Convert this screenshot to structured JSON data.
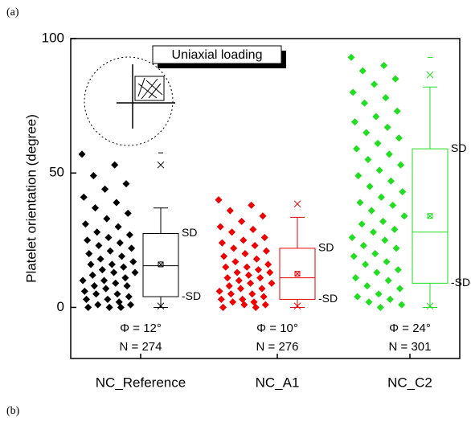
{
  "chart_data": {
    "type": "box_scatter",
    "panel_label": "(a)",
    "next_panel_label": "(b)",
    "y_label": "Platelet orientation (degree)",
    "inset_label": "Uniaxial loading",
    "ylim": [
      -19,
      100
    ],
    "yticks": [
      0,
      50,
      100
    ],
    "categories": [
      "NC_Reference",
      "NC_A1",
      "NC_C2"
    ],
    "series": [
      {
        "name": "NC_Reference",
        "color": "#000000",
        "values": [
          57,
          53,
          49,
          46,
          44,
          41,
          39,
          37,
          35,
          33,
          31,
          30,
          28,
          27,
          26,
          25,
          24,
          23,
          22,
          21,
          20,
          19,
          18,
          17,
          16,
          16,
          15,
          14,
          13,
          13,
          12,
          11,
          10,
          10,
          9,
          8,
          8,
          7,
          6,
          5,
          5,
          4,
          3,
          3,
          2,
          1,
          1,
          0,
          0,
          0
        ],
        "box": {
          "q1": 4,
          "median": 15.5,
          "q3": 27.5,
          "mean": 16,
          "whisker_low": 0,
          "whisker_high": 37,
          "min": 0.5,
          "max": 53,
          "p1": 0,
          "p99": 57.5
        },
        "sd_high_label": "SD",
        "sd_low_label": "-SD",
        "phi_label": "Φ = 12°",
        "n_label": "N = 274"
      },
      {
        "name": "NC_A1",
        "color": "#ee0000",
        "values": [
          40,
          38,
          36,
          34,
          32,
          30,
          29,
          28,
          26,
          25,
          24,
          23,
          22,
          21,
          20,
          19,
          18,
          17,
          16,
          15,
          15,
          14,
          13,
          13,
          12,
          11,
          11,
          10,
          9,
          9,
          8,
          7,
          7,
          6,
          5,
          5,
          4,
          3,
          3,
          2,
          2,
          1,
          1,
          0,
          0
        ],
        "box": {
          "q1": 3,
          "median": 11,
          "q3": 22,
          "mean": 12.5,
          "whisker_low": 0,
          "whisker_high": 33.5,
          "min": 0.5,
          "max": 38.5,
          "p1": 0,
          "p99": null
        },
        "sd_high_label": "SD",
        "sd_low_label": "-SD",
        "phi_label": "Φ = 10°",
        "n_label": "N = 276"
      },
      {
        "name": "NC_C2",
        "color": "#22dd22",
        "values": [
          93,
          90,
          88,
          85,
          83,
          80,
          78,
          76,
          73,
          71,
          69,
          67,
          65,
          63,
          61,
          59,
          57,
          55,
          53,
          51,
          49,
          47,
          45,
          43,
          41,
          39,
          38,
          36,
          34,
          32,
          31,
          29,
          28,
          26,
          25,
          23,
          22,
          20,
          19,
          17,
          16,
          14,
          13,
          11,
          10,
          8,
          7,
          5,
          4,
          3,
          2,
          1,
          0
        ],
        "box": {
          "q1": 9,
          "median": 28,
          "q3": 59,
          "mean": 34,
          "whisker_low": 0,
          "whisker_high": 82,
          "min": 0.5,
          "max": 86.5,
          "p1": 0,
          "p99": 93
        },
        "sd_high_label": "SD",
        "sd_low_label": "-SD",
        "phi_label": "Φ = 24°",
        "n_label": "N = 301"
      }
    ]
  }
}
